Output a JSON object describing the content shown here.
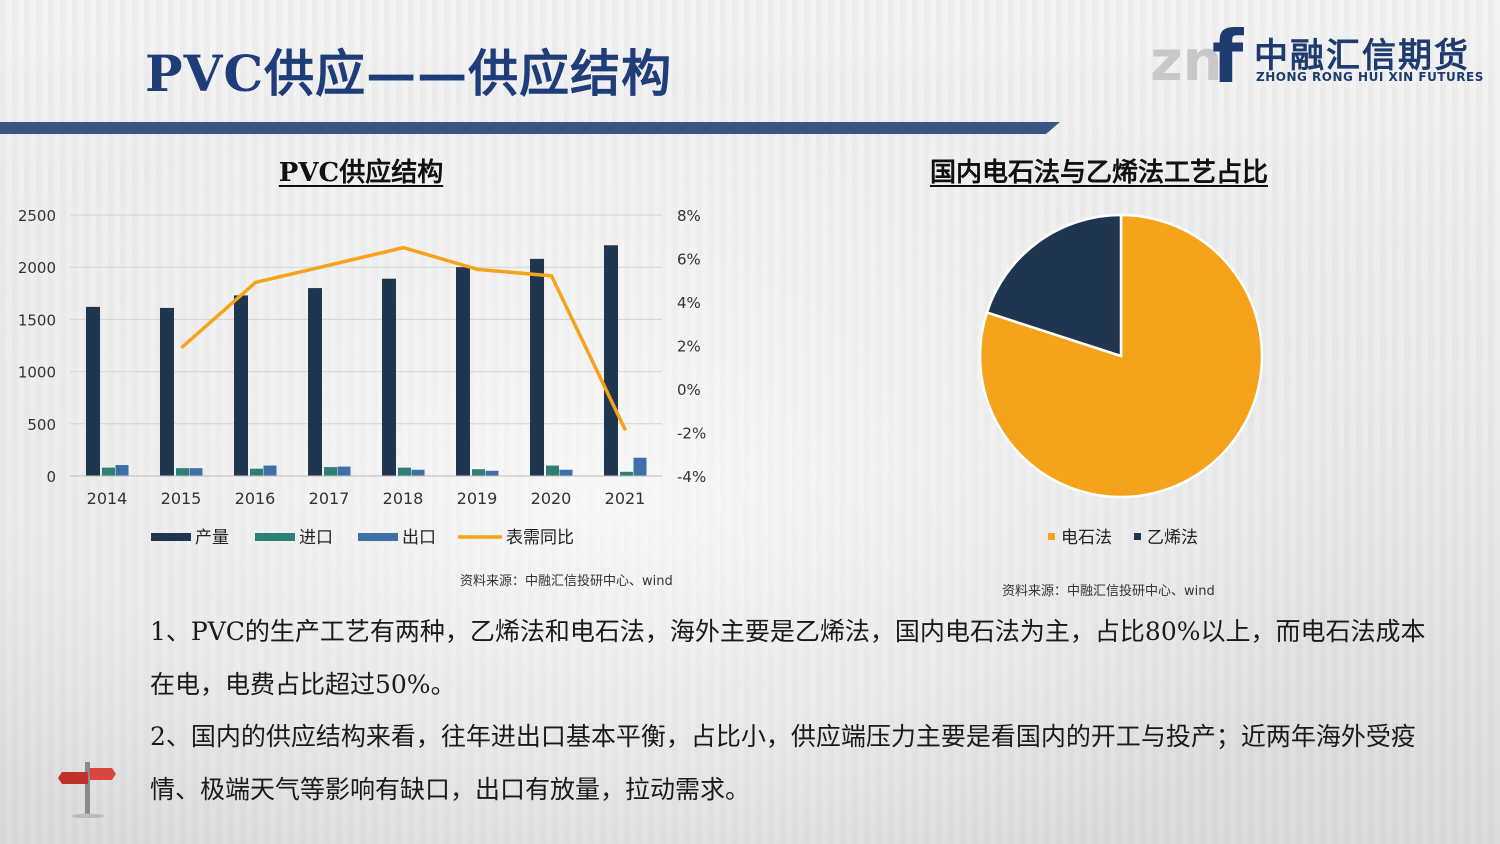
{
  "slide": {
    "title": "PVC供应——供应结构",
    "logo": {
      "mark": "znf",
      "cn": "中融汇信期货",
      "en": "ZHONG RONG HUI XIN FUTURES"
    }
  },
  "colors": {
    "title": "#1f3d78",
    "production": "#1f3550",
    "import": "#2e7f74",
    "export": "#3e6fa6",
    "yoy": "#f5a31a",
    "pie_calcium_carbide": "#f5a31a",
    "pie_ethylene": "#1f3550"
  },
  "left_chart": {
    "source": "资料来源：中融汇信投研中心、wind"
  },
  "right_chart": {
    "source": "资料来源：中融汇信投研中心、wind"
  },
  "chart_data": [
    {
      "type": "bar",
      "title": "PVC供应结构",
      "categories": [
        "2014",
        "2015",
        "2016",
        "2017",
        "2018",
        "2019",
        "2020",
        "2021"
      ],
      "series": [
        {
          "name": "产量",
          "type": "bar",
          "axis": "left",
          "values": [
            1620,
            1610,
            1730,
            1800,
            1890,
            2000,
            2080,
            2210
          ]
        },
        {
          "name": "进口",
          "type": "bar",
          "axis": "left",
          "values": [
            80,
            75,
            70,
            85,
            80,
            65,
            100,
            40
          ]
        },
        {
          "name": "出口",
          "type": "bar",
          "axis": "left",
          "values": [
            105,
            75,
            100,
            90,
            60,
            50,
            60,
            175
          ]
        },
        {
          "name": "表需同比",
          "type": "line",
          "axis": "right",
          "values": [
            null,
            0.019,
            0.049,
            0.057,
            0.065,
            0.055,
            0.052,
            -0.019
          ]
        }
      ],
      "ylim_left": [
        0,
        2500
      ],
      "yticks_left": [
        "0",
        "500",
        "1000",
        "1500",
        "2000",
        "2500"
      ],
      "ylim_right": [
        -0.04,
        0.08
      ],
      "yticks_right": [
        "-4%",
        "-2%",
        "0%",
        "2%",
        "4%",
        "6%",
        "8%"
      ],
      "grid": true,
      "legend_position": "bottom"
    },
    {
      "type": "pie",
      "title": "国内电石法与乙烯法工艺占比",
      "labels": [
        "电石法",
        "乙烯法"
      ],
      "values": [
        0.8,
        0.2
      ],
      "legend_position": "bottom"
    }
  ],
  "body": {
    "p1": "1、PVC的生产工艺有两种，乙烯法和电石法，海外主要是乙烯法，国内电石法为主，占比80%以上，而电石法成本在电，电费占比超过50%。",
    "p2": "2、国内的供应结构来看，往年进出口基本平衡，占比小，供应端压力主要是看国内的开工与投产；近两年海外受疫情、极端天气等影响有缺口，出口有放量，拉动需求。"
  }
}
